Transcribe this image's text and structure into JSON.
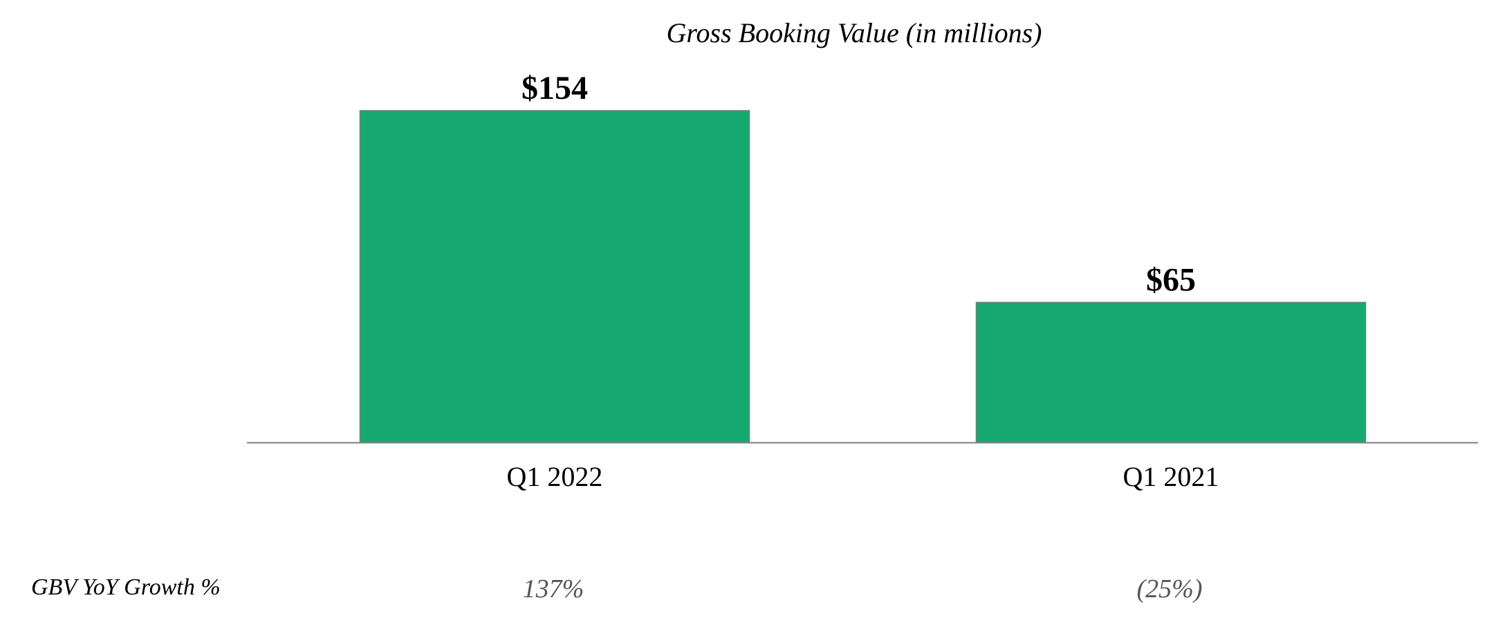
{
  "colors": {
    "bar": "#16a970",
    "bar_edge": "#6f7f78",
    "axis": "#7f7f7f",
    "text": "#000000",
    "growth_text": "#555555"
  },
  "chart_data": {
    "type": "bar",
    "title": "Gross Booking Value (in millions)",
    "xlabel": "",
    "ylabel": "",
    "categories": [
      "Q1 2022",
      "Q1 2021"
    ],
    "values": [
      154,
      65
    ],
    "value_labels": [
      "$154",
      "$65"
    ],
    "ylim": [
      0,
      154
    ],
    "grid": false,
    "growth_row": {
      "label": "GBV YoY Growth %",
      "values": [
        "137%",
        "(25%)"
      ]
    }
  }
}
